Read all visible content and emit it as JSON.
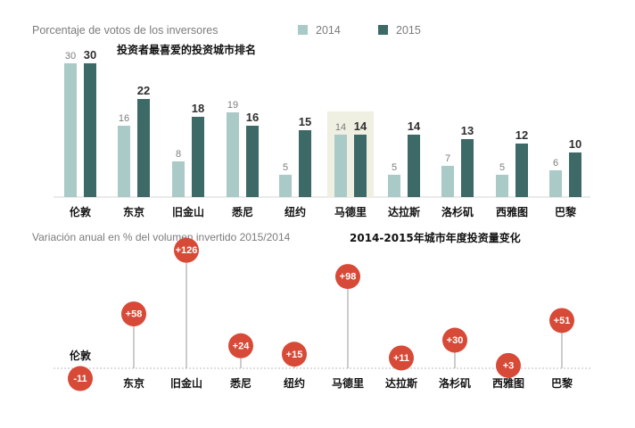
{
  "chart_data": [
    {
      "type": "bar",
      "title": "Porcentaje de votos de los inversores",
      "subtitle": "投资者最喜爱的投资城市排名",
      "categories": [
        "伦敦",
        "东京",
        "旧金山",
        "悉尼",
        "纽约",
        "马德里",
        "达拉斯",
        "洛杉矶",
        "西雅图",
        "巴黎"
      ],
      "series": [
        {
          "name": "2014",
          "values": [
            30,
            16,
            8,
            19,
            5,
            14,
            5,
            7,
            5,
            6
          ]
        },
        {
          "name": "2015",
          "values": [
            30,
            22,
            18,
            16,
            15,
            14,
            14,
            13,
            12,
            10
          ]
        }
      ],
      "ylim": [
        0,
        30
      ],
      "highlighted_category": "马德里",
      "legend_position": "top",
      "colors": {
        "2014": "#a9cac6",
        "2015": "#3d6a67",
        "highlight": "#efefe2"
      }
    },
    {
      "type": "lollipop",
      "title": "Variación anual en % del volumen invertido 2015/2014",
      "subtitle": "2014-2015年城市年度投资量变化",
      "categories": [
        "伦敦",
        "东京",
        "旧金山",
        "悉尼",
        "纽约",
        "马德里",
        "达拉斯",
        "洛杉矶",
        "西雅图",
        "巴黎"
      ],
      "values": [
        -11,
        58,
        126,
        24,
        15,
        98,
        11,
        30,
        3,
        51
      ],
      "labels": [
        "-11",
        "+58",
        "+126",
        "+24",
        "+15",
        "+98",
        "+11",
        "+30",
        "+3",
        "+51"
      ],
      "colors": {
        "bubble": "#d74a37",
        "stem": "#9a9a9a",
        "baseline": "#bdbdbd"
      }
    }
  ]
}
